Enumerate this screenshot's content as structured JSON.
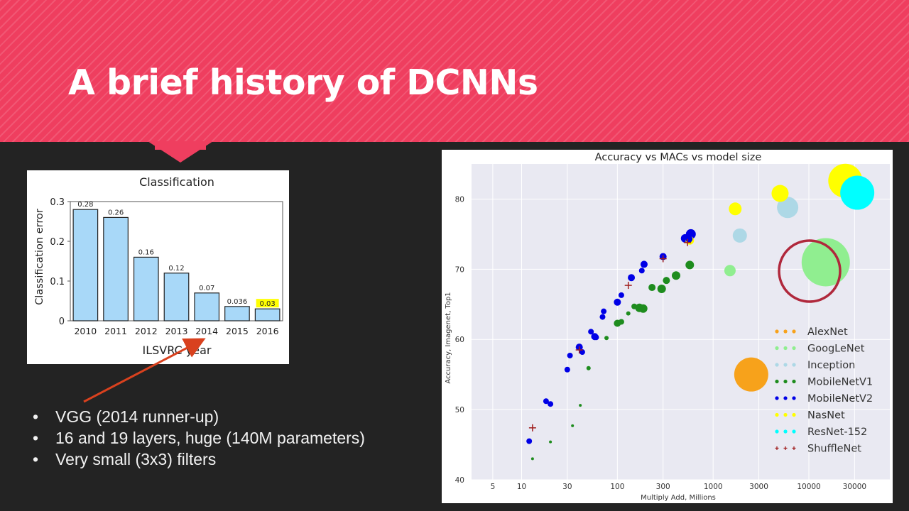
{
  "slide": {
    "title": "A brief history of DCNNs",
    "bullets": [
      "VGG (2014 runner-up)",
      "16 and 19 layers, huge (140M parameters)",
      "Very small (3x3) filters"
    ],
    "colors": {
      "banner": "#ef3e5f",
      "background": "#232323",
      "arrow": "#d9411e",
      "circle": "#b0283c"
    }
  },
  "chart_data": [
    {
      "type": "bar",
      "title": "Classification",
      "xlabel": "ILSVRC year",
      "ylabel": "Classification error",
      "categories": [
        "2010",
        "2011",
        "2012",
        "2013",
        "2014",
        "2015",
        "2016"
      ],
      "values": [
        0.28,
        0.26,
        0.16,
        0.12,
        0.07,
        0.036,
        0.03
      ],
      "data_labels": [
        "0.28",
        "0.26",
        "0.16",
        "0.12",
        "0.07",
        "0.036",
        "0.03"
      ],
      "highlight_index": 6,
      "ylim": [
        0,
        0.3
      ],
      "yticks": [
        "0",
        "0.1",
        "0.2",
        "0.3"
      ],
      "colors": {
        "bar": "#a8d8f8",
        "highlight": "#ffff00"
      }
    },
    {
      "type": "scatter",
      "title": "Accuracy vs MACs vs model size",
      "xlabel": "Multiply Add, Millions",
      "ylabel": "Accuracy, Imagenet, Top1",
      "xscale": "log",
      "xlim": [
        3,
        70000
      ],
      "ylim": [
        40,
        85
      ],
      "xticks": [
        5,
        10,
        30,
        100,
        300,
        1000,
        3000,
        10000,
        30000
      ],
      "yticks": [
        40,
        50,
        60,
        70,
        80
      ],
      "grid": true,
      "legend": "bottom-right",
      "series": [
        {
          "name": "AlexNet",
          "color": "#f7a21b",
          "marker": "o",
          "points": [
            [
              2500,
              55.0,
              24
            ]
          ]
        },
        {
          "name": "GoogLeNet",
          "color": "#90ee90",
          "marker": "o",
          "points": [
            [
              1500,
              69.8,
              8
            ],
            [
              15000,
              71.0,
              34
            ]
          ]
        },
        {
          "name": "Inception",
          "color": "#add8e6",
          "marker": "o",
          "points": [
            [
              1900,
              74.8,
              10
            ],
            [
              6000,
              78.8,
              15
            ]
          ]
        },
        {
          "name": "MobileNetV1",
          "color": "#1e8c1e",
          "marker": "o",
          "points": [
            [
              13,
              43.0,
              2
            ],
            [
              20,
              45.4,
              2
            ],
            [
              34,
              47.7,
              2
            ],
            [
              41,
              50.6,
              2
            ],
            [
              50,
              55.9,
              3
            ],
            [
              77,
              60.2,
              3
            ],
            [
              100,
              62.3,
              5
            ],
            [
              110,
              62.5,
              4
            ],
            [
              130,
              63.7,
              3
            ],
            [
              150,
              64.7,
              4
            ],
            [
              170,
              64.5,
              6
            ],
            [
              186,
              64.4,
              6
            ],
            [
              230,
              67.4,
              5
            ],
            [
              290,
              67.2,
              6
            ],
            [
              325,
              68.4,
              5
            ],
            [
              410,
              69.1,
              6
            ],
            [
              570,
              70.6,
              6
            ]
          ]
        },
        {
          "name": "MobileNetV2",
          "color": "#0000e6",
          "marker": "o",
          "points": [
            [
              12,
              45.5,
              4
            ],
            [
              18,
              51.2,
              4
            ],
            [
              20,
              50.8,
              4
            ],
            [
              30,
              55.7,
              4
            ],
            [
              32,
              57.7,
              4
            ],
            [
              40,
              58.9,
              5
            ],
            [
              43,
              58.2,
              4
            ],
            [
              53,
              61.1,
              4
            ],
            [
              58,
              60.4,
              5
            ],
            [
              60,
              60.3,
              4
            ],
            [
              70,
              63.2,
              4
            ],
            [
              72,
              64.0,
              4
            ],
            [
              100,
              65.3,
              5
            ],
            [
              110,
              66.3,
              4
            ],
            [
              140,
              68.8,
              5
            ],
            [
              180,
              69.8,
              4
            ],
            [
              190,
              70.7,
              5
            ],
            [
              300,
              71.8,
              5
            ],
            [
              510,
              74.4,
              6
            ],
            [
              560,
              74.3,
              5
            ],
            [
              585,
              75.0,
              7
            ]
          ]
        },
        {
          "name": "NasNet",
          "color": "#ffff00",
          "marker": "o",
          "points": [
            [
              570,
              74.1,
              6
            ],
            [
              1700,
              78.6,
              9
            ],
            [
              5000,
              80.8,
              12
            ],
            [
              24000,
              82.6,
              24
            ]
          ]
        },
        {
          "name": "ResNet-152",
          "color": "#00ffff",
          "marker": "o",
          "points": [
            [
              32000,
              80.9,
              24
            ]
          ]
        },
        {
          "name": "ShuffleNet",
          "color": "#a01e1e",
          "marker": "+",
          "points": [
            [
              13,
              47.4
            ],
            [
              40,
              58.5
            ],
            [
              130,
              67.7
            ],
            [
              300,
              71.5
            ],
            [
              540,
              73.8
            ]
          ]
        }
      ]
    }
  ]
}
